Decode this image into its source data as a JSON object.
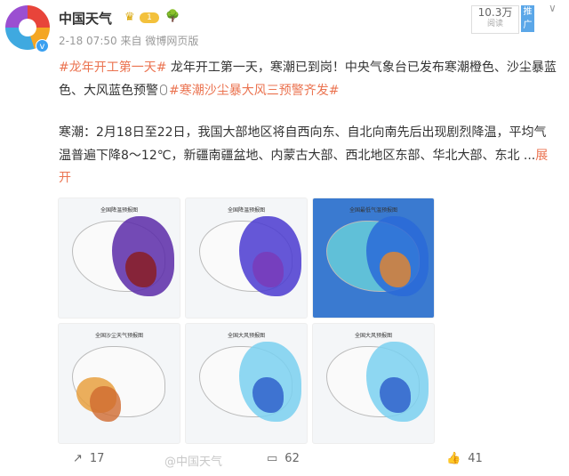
{
  "author": {
    "name": "中国天气",
    "level": "1",
    "timestamp": "2-18 07:50",
    "source_prefix": "来自",
    "source": "微博网页版"
  },
  "reads": {
    "count": "10.3万",
    "label": "阅读"
  },
  "promote_label": "推广",
  "post": {
    "tag1": "#龙年开工第一天#",
    "line1": " 龙年开工第一天，寒潮已到岗！中央气象台已发布寒潮橙色、沙尘暴蓝色、大风蓝色预警",
    "tag2": "#寒潮沙尘暴大风三预警齐发#",
    "body": "寒潮：2月18日至22日，我国大部地区将自西向东、自北向南先后出现剧烈降温，平均气温普遍下降8～12℃，新疆南疆盆地、内蒙古大部、西北地区东部、华北大部、东北 ...",
    "expand_label": "展开"
  },
  "images": [
    {
      "caption": "全国降温预报图",
      "palette": [
        "#5a2aa8",
        "#8b1a1a"
      ]
    },
    {
      "caption": "全国降温预报图",
      "palette": [
        "#4a3ad0",
        "#7a3ab8"
      ]
    },
    {
      "caption": "全国最低气温预报图",
      "palette": [
        "#2a6ad8",
        "#e8862a"
      ]
    },
    {
      "caption": "全国沙尘天气预报图",
      "palette": [
        "#e8a040",
        "#d06a30"
      ]
    },
    {
      "caption": "全国大风预报图",
      "palette": [
        "#7ad0f0",
        "#2a5ac8"
      ]
    },
    {
      "caption": "全国大风预报图",
      "palette": [
        "#7ad0f0",
        "#2a5ac8"
      ]
    }
  ],
  "actions": {
    "share": "17",
    "comment": "62",
    "like": "41"
  },
  "watermark": "@中国天气",
  "colors": {
    "accent": "#eb7350",
    "verified": "#3aa0f0"
  }
}
